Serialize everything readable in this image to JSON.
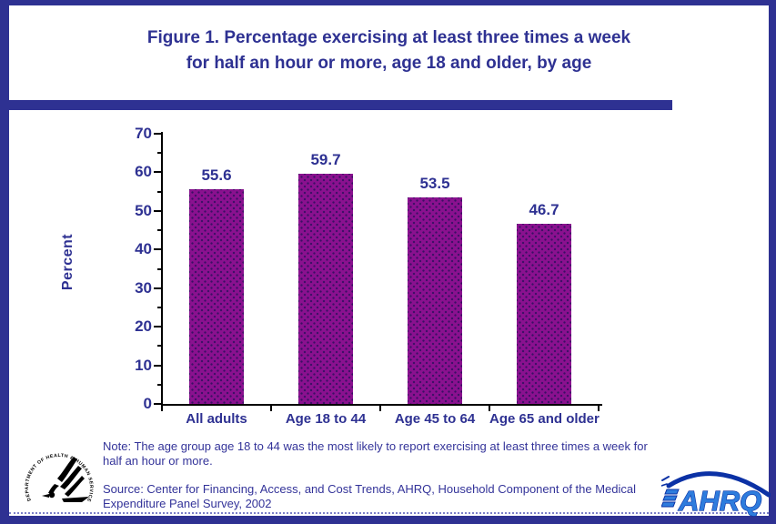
{
  "colors": {
    "navy": "#2e3192",
    "text_navy": "#333399",
    "bar_purple": "#8a118f",
    "bar_dot": "#3a1064",
    "axis": "#000000",
    "ahrq_blue": "#2e7cdd",
    "ahrq_dark_blue": "#0b31a5"
  },
  "header": {
    "title_line1": "Figure 1. Percentage exercising at least three times a week",
    "title_line2": "for half an hour or more, age 18 and older, by age"
  },
  "chart_data": {
    "type": "bar",
    "title": "Figure 1. Percentage exercising at least three times a week for half an hour or more, age 18 and older, by age",
    "categories": [
      "All adults",
      "Age 18 to 44",
      "Age 45 to 64",
      "Age 65 and older"
    ],
    "values": [
      55.6,
      59.7,
      53.5,
      46.7
    ],
    "xlabel": "",
    "ylabel": "Percent",
    "ylim": [
      0,
      70
    ],
    "yticks": [
      0,
      10,
      20,
      30,
      40,
      50,
      60,
      70
    ],
    "minor_tick_interval": 5,
    "grid": false,
    "legend": false,
    "bar_color": "#8a118f",
    "value_label_decimals": 1
  },
  "footer": {
    "note_line1": "Note: The age group age 18 to 44 was the most likely to report exercising at least three times a week for",
    "note_line2": "half an hour or more.",
    "source_line1": "Source: Center for Financing, Access, and Cost Trends, AHRQ, Household Component of the Medical",
    "source_line2": "Expenditure Panel Survey, 2002"
  },
  "logos": {
    "hhs_seal_text": "DEPARTMENT OF HEALTH & HUMAN SERVICES • USA",
    "ahrq_text": "AHRQ"
  }
}
